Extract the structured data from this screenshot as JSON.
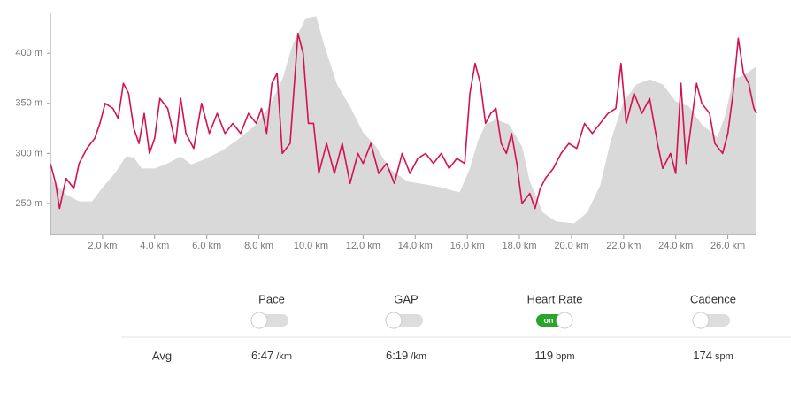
{
  "chart_data": {
    "type": "area-line",
    "xlim": [
      0,
      27.1
    ],
    "ylim": [
      219,
      440
    ],
    "xticks": [
      {
        "value": 2,
        "label": "2.0 km"
      },
      {
        "value": 4,
        "label": "4.0 km"
      },
      {
        "value": 6,
        "label": "6.0 km"
      },
      {
        "value": 8,
        "label": "8.0 km"
      },
      {
        "value": 10,
        "label": "10.0 km"
      },
      {
        "value": 12,
        "label": "12.0 km"
      },
      {
        "value": 14,
        "label": "14.0 km"
      },
      {
        "value": 16,
        "label": "16.0 km"
      },
      {
        "value": 18,
        "label": "18.0 km"
      },
      {
        "value": 20,
        "label": "20.0 km"
      },
      {
        "value": 22,
        "label": "22.0 km"
      },
      {
        "value": 24,
        "label": "24.0 km"
      },
      {
        "value": 26,
        "label": "26.0 km"
      }
    ],
    "yticks": [
      {
        "value": 250,
        "label": "250 m"
      },
      {
        "value": 300,
        "label": "300 m"
      },
      {
        "value": 350,
        "label": "350 m"
      },
      {
        "value": 400,
        "label": "400 m"
      }
    ],
    "series": [
      {
        "style": "area",
        "color": "#d9d9d9",
        "x": [
          0,
          0.1,
          0.6,
          1.1,
          1.6,
          2.0,
          2.5,
          2.9,
          3.2,
          3.5,
          4.0,
          4.5,
          5.0,
          5.4,
          5.9,
          6.6,
          7.2,
          7.9,
          8.4,
          8.9,
          9.3,
          9.8,
          10.2,
          10.5,
          11.0,
          11.5,
          12.0,
          12.5,
          13.0,
          13.7,
          14.4,
          15.0,
          15.7,
          16.1,
          16.4,
          16.7,
          17.1,
          17.6,
          18.1,
          18.4,
          18.9,
          19.4,
          20.1,
          20.6,
          21.1,
          21.5,
          22.0,
          22.5,
          23.0,
          23.5,
          24.0,
          24.5,
          25.0,
          25.6,
          25.9,
          26.2,
          26.6,
          27.1
        ],
        "values": [
          285,
          272,
          259,
          252,
          252,
          266,
          281,
          297,
          296,
          285,
          285,
          290,
          297,
          289,
          294,
          303,
          314,
          329,
          347,
          374,
          409,
          435,
          437,
          409,
          369,
          347,
          321,
          307,
          285,
          272,
          269,
          266,
          261,
          285,
          312,
          329,
          334,
          329,
          307,
          272,
          241,
          232,
          230,
          241,
          268,
          312,
          352,
          369,
          374,
          369,
          352,
          347,
          329,
          316,
          338,
          374,
          378,
          387
        ]
      },
      {
        "style": "line",
        "color": "#d4124f",
        "x": [
          0,
          0.2,
          0.35,
          0.6,
          0.9,
          1.1,
          1.4,
          1.7,
          1.9,
          2.1,
          2.4,
          2.6,
          2.8,
          3.0,
          3.2,
          3.4,
          3.6,
          3.8,
          4.0,
          4.2,
          4.5,
          4.8,
          5.0,
          5.2,
          5.5,
          5.8,
          6.1,
          6.4,
          6.7,
          7.0,
          7.3,
          7.6,
          7.9,
          8.1,
          8.3,
          8.5,
          8.7,
          8.9,
          9.2,
          9.5,
          9.7,
          9.9,
          10.1,
          10.3,
          10.6,
          10.9,
          11.2,
          11.5,
          11.8,
          12.0,
          12.3,
          12.6,
          12.9,
          13.2,
          13.5,
          13.8,
          14.1,
          14.4,
          14.7,
          15.0,
          15.3,
          15.6,
          15.9,
          16.1,
          16.3,
          16.5,
          16.7,
          16.9,
          17.1,
          17.3,
          17.5,
          17.7,
          17.9,
          18.1,
          18.4,
          18.6,
          18.8,
          19.0,
          19.3,
          19.6,
          19.9,
          20.2,
          20.5,
          20.8,
          21.1,
          21.4,
          21.7,
          21.9,
          22.1,
          22.4,
          22.7,
          23.0,
          23.3,
          23.5,
          23.8,
          24.0,
          24.2,
          24.4,
          24.6,
          24.8,
          25.0,
          25.3,
          25.5,
          25.8,
          26.0,
          26.2,
          26.4,
          26.6,
          26.8,
          27.0,
          27.1
        ],
        "values": [
          290,
          270,
          245,
          275,
          265,
          290,
          305,
          315,
          330,
          350,
          345,
          335,
          370,
          360,
          325,
          310,
          340,
          300,
          315,
          355,
          345,
          310,
          355,
          320,
          305,
          350,
          320,
          340,
          320,
          330,
          320,
          340,
          330,
          345,
          320,
          370,
          380,
          300,
          310,
          420,
          400,
          330,
          330,
          280,
          310,
          280,
          310,
          270,
          300,
          290,
          310,
          280,
          290,
          270,
          300,
          280,
          295,
          300,
          290,
          300,
          285,
          295,
          290,
          360,
          390,
          370,
          330,
          340,
          345,
          310,
          300,
          320,
          290,
          250,
          260,
          245,
          265,
          275,
          285,
          300,
          310,
          305,
          330,
          320,
          330,
          340,
          345,
          390,
          330,
          360,
          340,
          355,
          310,
          285,
          300,
          280,
          370,
          290,
          330,
          370,
          350,
          340,
          310,
          300,
          320,
          360,
          415,
          380,
          370,
          345,
          340
        ]
      }
    ]
  },
  "stats": {
    "row_label": "Avg",
    "metrics": [
      {
        "name": "Pace",
        "enabled": false,
        "avg": "6:47",
        "unit": "/km"
      },
      {
        "name": "GAP",
        "enabled": false,
        "avg": "6:19",
        "unit": "/km"
      },
      {
        "name": "Heart Rate",
        "enabled": true,
        "toggle_label": "on",
        "avg": "119",
        "unit": "bpm"
      },
      {
        "name": "Cadence",
        "enabled": false,
        "avg": "174",
        "unit": "spm"
      }
    ]
  }
}
